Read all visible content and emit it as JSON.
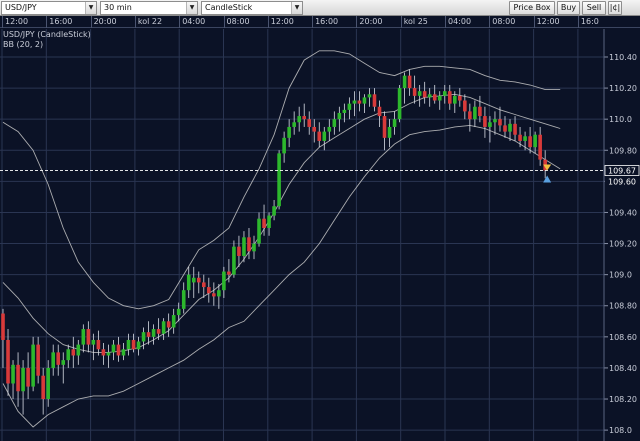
{
  "toolbar": {
    "symbol": "USD/JPY",
    "timeframe": "30 min",
    "chart_type": "CandleStick",
    "price_box_label": "Price Box",
    "buy_label": "Buy",
    "sell_label": "Sell",
    "extra_label": "|¢|"
  },
  "time_axis": [
    "12:00",
    "16:00",
    "20:00",
    "kol 22",
    "04:00",
    "08:00",
    "12:00",
    "16:00",
    "20:00",
    "kol 25",
    "04:00",
    "08:00",
    "12:00",
    "16:0"
  ],
  "chart_data": {
    "type": "candlestick",
    "title": "USD/JPY (CandleStick)",
    "indicator": "BB (20, 2)",
    "y_ticks": [
      "110.40",
      "110.20",
      "110.0",
      "109.80",
      "109.60",
      "109.40",
      "109.20",
      "109.0",
      "108.80",
      "108.60",
      "108.40",
      "108.20",
      "108.0"
    ],
    "ylim": [
      107.93,
      110.58
    ],
    "grid": true,
    "current_price_label": "109.67",
    "current_price": 109.67,
    "last_price_label": "109.60",
    "last_price": 109.6,
    "x_count": 115,
    "candles": [
      [
        108.75,
        108.78,
        108.4,
        108.58
      ],
      [
        108.58,
        108.65,
        108.22,
        108.3
      ],
      [
        108.3,
        108.45,
        108.2,
        108.42
      ],
      [
        108.42,
        108.5,
        108.15,
        108.25
      ],
      [
        108.25,
        108.45,
        108.1,
        108.4
      ],
      [
        108.4,
        108.5,
        108.2,
        108.28
      ],
      [
        108.28,
        108.6,
        108.25,
        108.55
      ],
      [
        108.55,
        108.6,
        108.3,
        108.35
      ],
      [
        108.35,
        108.4,
        108.1,
        108.2
      ],
      [
        108.2,
        108.45,
        108.15,
        108.4
      ],
      [
        108.4,
        108.55,
        108.35,
        108.5
      ],
      [
        108.5,
        108.55,
        108.35,
        108.42
      ],
      [
        108.42,
        108.5,
        108.3,
        108.45
      ],
      [
        108.45,
        108.55,
        108.4,
        108.52
      ],
      [
        108.52,
        108.6,
        108.4,
        108.48
      ],
      [
        108.48,
        108.58,
        108.42,
        108.55
      ],
      [
        108.55,
        108.68,
        108.5,
        108.65
      ],
      [
        108.65,
        108.7,
        108.5,
        108.55
      ],
      [
        108.55,
        108.62,
        108.45,
        108.58
      ],
      [
        108.58,
        108.64,
        108.48,
        108.52
      ],
      [
        108.52,
        108.56,
        108.42,
        108.48
      ],
      [
        108.48,
        108.55,
        108.4,
        108.5
      ],
      [
        108.5,
        108.58,
        108.45,
        108.55
      ],
      [
        108.55,
        108.6,
        108.44,
        108.48
      ],
      [
        108.48,
        108.56,
        108.45,
        108.52
      ],
      [
        108.52,
        108.62,
        108.48,
        108.58
      ],
      [
        108.58,
        108.62,
        108.5,
        108.52
      ],
      [
        108.52,
        108.6,
        108.48,
        108.57
      ],
      [
        108.57,
        108.66,
        108.52,
        108.63
      ],
      [
        108.63,
        108.7,
        108.55,
        108.6
      ],
      [
        108.6,
        108.68,
        108.55,
        108.65
      ],
      [
        108.65,
        108.72,
        108.58,
        108.62
      ],
      [
        108.62,
        108.72,
        108.58,
        108.7
      ],
      [
        108.7,
        108.75,
        108.6,
        108.66
      ],
      [
        108.66,
        108.78,
        108.62,
        108.74
      ],
      [
        108.74,
        108.82,
        108.7,
        108.78
      ],
      [
        108.78,
        108.95,
        108.75,
        108.9
      ],
      [
        108.9,
        109.05,
        108.85,
        109.0
      ],
      [
        108.95,
        109.05,
        108.85,
        108.98
      ],
      [
        108.98,
        109.02,
        108.88,
        108.95
      ],
      [
        108.95,
        109.0,
        108.85,
        108.92
      ],
      [
        108.92,
        108.98,
        108.82,
        108.88
      ],
      [
        108.88,
        108.95,
        108.8,
        108.86
      ],
      [
        108.86,
        108.94,
        108.78,
        108.9
      ],
      [
        108.9,
        109.05,
        108.85,
        109.02
      ],
      [
        109.02,
        109.1,
        108.95,
        109.0
      ],
      [
        109.0,
        109.22,
        108.98,
        109.18
      ],
      [
        109.18,
        109.25,
        109.05,
        109.12
      ],
      [
        109.12,
        109.28,
        109.08,
        109.24
      ],
      [
        109.24,
        109.3,
        109.1,
        109.15
      ],
      [
        109.15,
        109.25,
        109.1,
        109.2
      ],
      [
        109.2,
        109.4,
        109.18,
        109.36
      ],
      [
        109.36,
        109.45,
        109.25,
        109.3
      ],
      [
        109.3,
        109.4,
        109.25,
        109.38
      ],
      [
        109.38,
        109.48,
        109.35,
        109.44
      ],
      [
        109.44,
        109.8,
        109.42,
        109.78
      ],
      [
        109.78,
        109.92,
        109.72,
        109.88
      ],
      [
        109.88,
        110.0,
        109.82,
        109.95
      ],
      [
        109.95,
        110.05,
        109.9,
        109.98
      ],
      [
        109.98,
        110.08,
        109.92,
        110.02
      ],
      [
        110.02,
        110.1,
        109.95,
        110.0
      ],
      [
        110.0,
        110.05,
        109.9,
        109.95
      ],
      [
        109.95,
        110.0,
        109.85,
        109.92
      ],
      [
        109.92,
        109.98,
        109.82,
        109.86
      ],
      [
        109.86,
        109.95,
        109.8,
        109.92
      ],
      [
        109.92,
        110.0,
        109.86,
        109.95
      ],
      [
        109.95,
        110.05,
        109.9,
        110.0
      ],
      [
        110.0,
        110.08,
        109.92,
        110.04
      ],
      [
        110.04,
        110.1,
        109.98,
        110.06
      ],
      [
        110.06,
        110.14,
        110.0,
        110.1
      ],
      [
        110.1,
        110.18,
        110.02,
        110.12
      ],
      [
        110.12,
        110.18,
        110.05,
        110.1
      ],
      [
        110.1,
        110.16,
        110.04,
        110.14
      ],
      [
        110.14,
        110.2,
        110.08,
        110.16
      ],
      [
        110.16,
        110.2,
        110.05,
        110.08
      ],
      [
        110.08,
        110.12,
        109.95,
        110.02
      ],
      [
        110.02,
        110.05,
        109.8,
        109.88
      ],
      [
        109.88,
        110.0,
        109.82,
        109.95
      ],
      [
        109.95,
        110.05,
        109.9,
        110.0
      ],
      [
        110.0,
        110.22,
        109.98,
        110.2
      ],
      [
        110.2,
        110.3,
        110.1,
        110.28
      ],
      [
        110.28,
        110.32,
        110.15,
        110.2
      ],
      [
        110.2,
        110.28,
        110.1,
        110.15
      ],
      [
        110.15,
        110.22,
        110.08,
        110.18
      ],
      [
        110.18,
        110.24,
        110.1,
        110.14
      ],
      [
        110.14,
        110.2,
        110.08,
        110.16
      ],
      [
        110.16,
        110.22,
        110.1,
        110.12
      ],
      [
        110.12,
        110.18,
        110.06,
        110.15
      ],
      [
        110.15,
        110.22,
        110.1,
        110.18
      ],
      [
        110.18,
        110.22,
        110.06,
        110.1
      ],
      [
        110.1,
        110.18,
        110.04,
        110.15
      ],
      [
        110.15,
        110.2,
        110.08,
        110.12
      ],
      [
        110.12,
        110.16,
        110.0,
        110.05
      ],
      [
        110.05,
        110.1,
        109.92,
        110.0
      ],
      [
        110.0,
        110.12,
        109.95,
        110.08
      ],
      [
        110.08,
        110.15,
        109.98,
        110.02
      ],
      [
        110.02,
        110.08,
        109.88,
        109.95
      ],
      [
        109.95,
        110.02,
        109.85,
        109.98
      ],
      [
        109.98,
        110.05,
        109.9,
        110.0
      ],
      [
        110.0,
        110.08,
        109.92,
        109.96
      ],
      [
        109.96,
        110.02,
        109.88,
        109.92
      ],
      [
        109.92,
        110.0,
        109.86,
        109.97
      ],
      [
        109.97,
        110.02,
        109.86,
        109.9
      ],
      [
        109.9,
        109.95,
        109.82,
        109.86
      ],
      [
        109.86,
        109.92,
        109.8,
        109.89
      ],
      [
        109.89,
        109.95,
        109.78,
        109.82
      ],
      [
        109.82,
        109.92,
        109.78,
        109.9
      ],
      [
        109.9,
        109.95,
        109.7,
        109.74
      ],
      [
        109.74,
        109.8,
        109.62,
        109.67
      ]
    ],
    "bb_upper": [
      [
        0,
        109.98
      ],
      [
        3,
        109.92
      ],
      [
        6,
        109.8
      ],
      [
        9,
        109.58
      ],
      [
        12,
        109.3
      ],
      [
        15,
        109.08
      ],
      [
        18,
        108.95
      ],
      [
        21,
        108.85
      ],
      [
        24,
        108.8
      ],
      [
        27,
        108.78
      ],
      [
        30,
        108.8
      ],
      [
        33,
        108.84
      ],
      [
        36,
        109.0
      ],
      [
        39,
        109.16
      ],
      [
        42,
        109.22
      ],
      [
        45,
        109.3
      ],
      [
        48,
        109.5
      ],
      [
        51,
        109.68
      ],
      [
        54,
        109.9
      ],
      [
        57,
        110.2
      ],
      [
        60,
        110.38
      ],
      [
        63,
        110.44
      ],
      [
        66,
        110.44
      ],
      [
        69,
        110.42
      ],
      [
        72,
        110.36
      ],
      [
        75,
        110.3
      ],
      [
        78,
        110.28
      ],
      [
        81,
        110.32
      ],
      [
        84,
        110.34
      ],
      [
        87,
        110.34
      ],
      [
        90,
        110.33
      ],
      [
        93,
        110.32
      ],
      [
        96,
        110.28
      ],
      [
        99,
        110.25
      ],
      [
        102,
        110.24
      ],
      [
        105,
        110.22
      ],
      [
        108,
        110.19
      ],
      [
        111,
        110.19
      ]
    ],
    "bb_middle": [
      [
        0,
        108.95
      ],
      [
        3,
        108.85
      ],
      [
        6,
        108.72
      ],
      [
        9,
        108.62
      ],
      [
        12,
        108.55
      ],
      [
        15,
        108.52
      ],
      [
        18,
        108.5
      ],
      [
        21,
        108.5
      ],
      [
        24,
        108.51
      ],
      [
        27,
        108.53
      ],
      [
        30,
        108.58
      ],
      [
        33,
        108.64
      ],
      [
        36,
        108.74
      ],
      [
        39,
        108.84
      ],
      [
        42,
        108.9
      ],
      [
        45,
        108.98
      ],
      [
        48,
        109.1
      ],
      [
        51,
        109.24
      ],
      [
        54,
        109.4
      ],
      [
        57,
        109.58
      ],
      [
        60,
        109.72
      ],
      [
        63,
        109.82
      ],
      [
        66,
        109.88
      ],
      [
        69,
        109.94
      ],
      [
        72,
        110.0
      ],
      [
        75,
        110.04
      ],
      [
        78,
        110.05
      ],
      [
        81,
        110.1
      ],
      [
        84,
        110.14
      ],
      [
        87,
        110.15
      ],
      [
        90,
        110.16
      ],
      [
        93,
        110.14
      ],
      [
        96,
        110.1
      ],
      [
        99,
        110.06
      ],
      [
        102,
        110.03
      ],
      [
        105,
        110.0
      ],
      [
        108,
        109.97
      ],
      [
        111,
        109.94
      ]
    ],
    "bb_lower": [
      [
        0,
        108.3
      ],
      [
        3,
        108.12
      ],
      [
        6,
        108.02
      ],
      [
        9,
        108.1
      ],
      [
        12,
        108.15
      ],
      [
        15,
        108.2
      ],
      [
        18,
        108.22
      ],
      [
        21,
        108.22
      ],
      [
        24,
        108.25
      ],
      [
        27,
        108.3
      ],
      [
        30,
        108.35
      ],
      [
        33,
        108.4
      ],
      [
        36,
        108.45
      ],
      [
        39,
        108.52
      ],
      [
        42,
        108.58
      ],
      [
        45,
        108.66
      ],
      [
        48,
        108.7
      ],
      [
        51,
        108.8
      ],
      [
        54,
        108.9
      ],
      [
        57,
        109.0
      ],
      [
        60,
        109.08
      ],
      [
        63,
        109.2
      ],
      [
        66,
        109.35
      ],
      [
        69,
        109.5
      ],
      [
        72,
        109.63
      ],
      [
        75,
        109.75
      ],
      [
        78,
        109.84
      ],
      [
        81,
        109.9
      ],
      [
        84,
        109.92
      ],
      [
        87,
        109.93
      ],
      [
        90,
        109.95
      ],
      [
        93,
        109.96
      ],
      [
        96,
        109.94
      ],
      [
        99,
        109.9
      ],
      [
        102,
        109.86
      ],
      [
        105,
        109.8
      ],
      [
        108,
        109.74
      ],
      [
        111,
        109.68
      ]
    ],
    "colors": {
      "background": "#0b1226",
      "grid": "#2a3552",
      "up": "#2db82d",
      "down": "#d83a3a",
      "band": "#c8c8c8"
    }
  }
}
